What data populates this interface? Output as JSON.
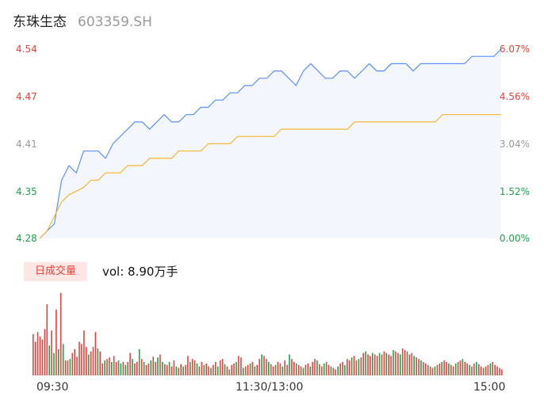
{
  "header": {
    "name": "东珠生态",
    "code": "603359.SH"
  },
  "colors": {
    "up": "#e8403a",
    "down": "#1aa34a",
    "neutral": "#999999",
    "price_line": "#5b8ff9",
    "avg_line": "#f5b731",
    "fill": "#f3f6fd"
  },
  "volume_panel": {
    "badge": "日成交量",
    "vol_label": "vol: 8.90万手"
  },
  "time_axis": [
    "09:30",
    "11:30/13:00",
    "15:00"
  ],
  "chart_data": {
    "type": "line",
    "y_left_ticks": [
      "4.54",
      "4.47",
      "4.41",
      "4.35",
      "4.28"
    ],
    "y_right_ticks": [
      "6.07%",
      "4.56%",
      "3.04%",
      "1.52%",
      "0.00%"
    ],
    "ylim": [
      4.28,
      4.54
    ],
    "price_series": [
      4.28,
      4.29,
      4.3,
      4.36,
      4.38,
      4.37,
      4.4,
      4.4,
      4.4,
      4.39,
      4.41,
      4.42,
      4.43,
      4.44,
      4.44,
      4.43,
      4.44,
      4.45,
      4.44,
      4.44,
      4.45,
      4.45,
      4.46,
      4.46,
      4.47,
      4.47,
      4.48,
      4.48,
      4.49,
      4.49,
      4.5,
      4.5,
      4.51,
      4.51,
      4.5,
      4.49,
      4.51,
      4.52,
      4.51,
      4.5,
      4.5,
      4.51,
      4.51,
      4.5,
      4.51,
      4.52,
      4.51,
      4.51,
      4.52,
      4.52,
      4.52,
      4.51,
      4.52,
      4.52,
      4.52,
      4.52,
      4.52,
      4.52,
      4.52,
      4.53,
      4.53,
      4.53,
      4.53,
      4.54
    ],
    "avg_series": [
      4.28,
      4.29,
      4.31,
      4.33,
      4.34,
      4.345,
      4.35,
      4.36,
      4.36,
      4.37,
      4.37,
      4.37,
      4.38,
      4.38,
      4.38,
      4.39,
      4.39,
      4.39,
      4.39,
      4.4,
      4.4,
      4.4,
      4.4,
      4.41,
      4.41,
      4.41,
      4.41,
      4.42,
      4.42,
      4.42,
      4.42,
      4.42,
      4.42,
      4.43,
      4.43,
      4.43,
      4.43,
      4.43,
      4.43,
      4.43,
      4.43,
      4.43,
      4.43,
      4.44,
      4.44,
      4.44,
      4.44,
      4.44,
      4.44,
      4.44,
      4.44,
      4.44,
      4.44,
      4.44,
      4.44,
      4.45,
      4.45,
      4.45,
      4.45,
      4.45,
      4.45,
      4.45,
      4.45,
      4.45
    ],
    "volumes": [
      55,
      45,
      58,
      52,
      48,
      62,
      95,
      40,
      60,
      30,
      88,
      35,
      110,
      42,
      20,
      20,
      22,
      30,
      35,
      25,
      45,
      42,
      60,
      38,
      28,
      32,
      38,
      58,
      36,
      32,
      16,
      20,
      22,
      24,
      18,
      26,
      18,
      20,
      16,
      18,
      14,
      18,
      30,
      22,
      16,
      18,
      35,
      22,
      18,
      14,
      16,
      20,
      25,
      18,
      24,
      28,
      18,
      15,
      14,
      18,
      12,
      20,
      12,
      10,
      15,
      12,
      14,
      26,
      18,
      22,
      20,
      16,
      12,
      18,
      14,
      16,
      12,
      10,
      14,
      18,
      12,
      20,
      22,
      15,
      12,
      8,
      14,
      16,
      18,
      26,
      24,
      10,
      12,
      14,
      16,
      18,
      12,
      14,
      22,
      28,
      26,
      22,
      18,
      15,
      12,
      14,
      18,
      16,
      12,
      20,
      14,
      28,
      22,
      18,
      16,
      14,
      12,
      10,
      14,
      16,
      12,
      18,
      22,
      20,
      15,
      12,
      16,
      18,
      14,
      12,
      10,
      8,
      12,
      16,
      18,
      14,
      22,
      20,
      24,
      26,
      20,
      22,
      24,
      30,
      32,
      28,
      26,
      30,
      28,
      26,
      30,
      28,
      32,
      30,
      28,
      26,
      34,
      32,
      30,
      28,
      36,
      34,
      32,
      28,
      30,
      26,
      24,
      22,
      20,
      18,
      16,
      14,
      12,
      10,
      12,
      14,
      16,
      18,
      20,
      18,
      16,
      14,
      12,
      16,
      18,
      20,
      22,
      18,
      16,
      14,
      12,
      16,
      18,
      15,
      12,
      10,
      12,
      14,
      16,
      18,
      14,
      12,
      10,
      8
    ],
    "volume_colors": [
      "up",
      "up",
      "up",
      "up",
      "up",
      "up",
      "up",
      "down",
      "up",
      "down",
      "up",
      "down",
      "up",
      "down",
      "up",
      "up",
      "down",
      "up",
      "up",
      "up",
      "up",
      "up",
      "up",
      "up",
      "down",
      "up",
      "up",
      "up",
      "down",
      "up",
      "up",
      "down",
      "up",
      "up",
      "down",
      "up",
      "up",
      "down",
      "down",
      "up",
      "down",
      "up",
      "up",
      "down",
      "up",
      "up",
      "down",
      "up",
      "down",
      "up",
      "up",
      "down",
      "up",
      "up",
      "down",
      "up",
      "down",
      "up",
      "up",
      "down",
      "up",
      "up",
      "down",
      "up",
      "up",
      "down",
      "up",
      "up",
      "down",
      "up",
      "up",
      "down",
      "up",
      "up",
      "down",
      "up",
      "up",
      "down",
      "up",
      "up",
      "down",
      "up",
      "up",
      "down",
      "up",
      "down",
      "up",
      "up",
      "down",
      "up",
      "up",
      "down",
      "up",
      "up",
      "down",
      "up",
      "down",
      "up",
      "up",
      "down",
      "up",
      "up",
      "down",
      "up",
      "up",
      "down",
      "up",
      "up",
      "down",
      "up",
      "up",
      "down",
      "up",
      "up",
      "down",
      "up",
      "up",
      "down",
      "up",
      "up",
      "down",
      "up",
      "up",
      "down",
      "up",
      "up",
      "down",
      "up",
      "up",
      "down",
      "up",
      "up",
      "down",
      "up",
      "up",
      "down",
      "up",
      "up",
      "down",
      "up",
      "up",
      "down",
      "up",
      "up",
      "down",
      "up",
      "up",
      "down",
      "up",
      "up",
      "down",
      "up",
      "up",
      "down",
      "up",
      "up",
      "down",
      "up",
      "up",
      "down",
      "up",
      "up",
      "down",
      "up",
      "up",
      "down",
      "up",
      "up",
      "down",
      "up",
      "up",
      "down",
      "up",
      "up",
      "down",
      "up",
      "up",
      "down",
      "up",
      "up",
      "down",
      "up",
      "up",
      "down",
      "up",
      "up",
      "down",
      "up",
      "up",
      "down",
      "up",
      "up",
      "down",
      "up",
      "up",
      "down",
      "up",
      "up",
      "down",
      "up",
      "up"
    ],
    "grid": false
  }
}
